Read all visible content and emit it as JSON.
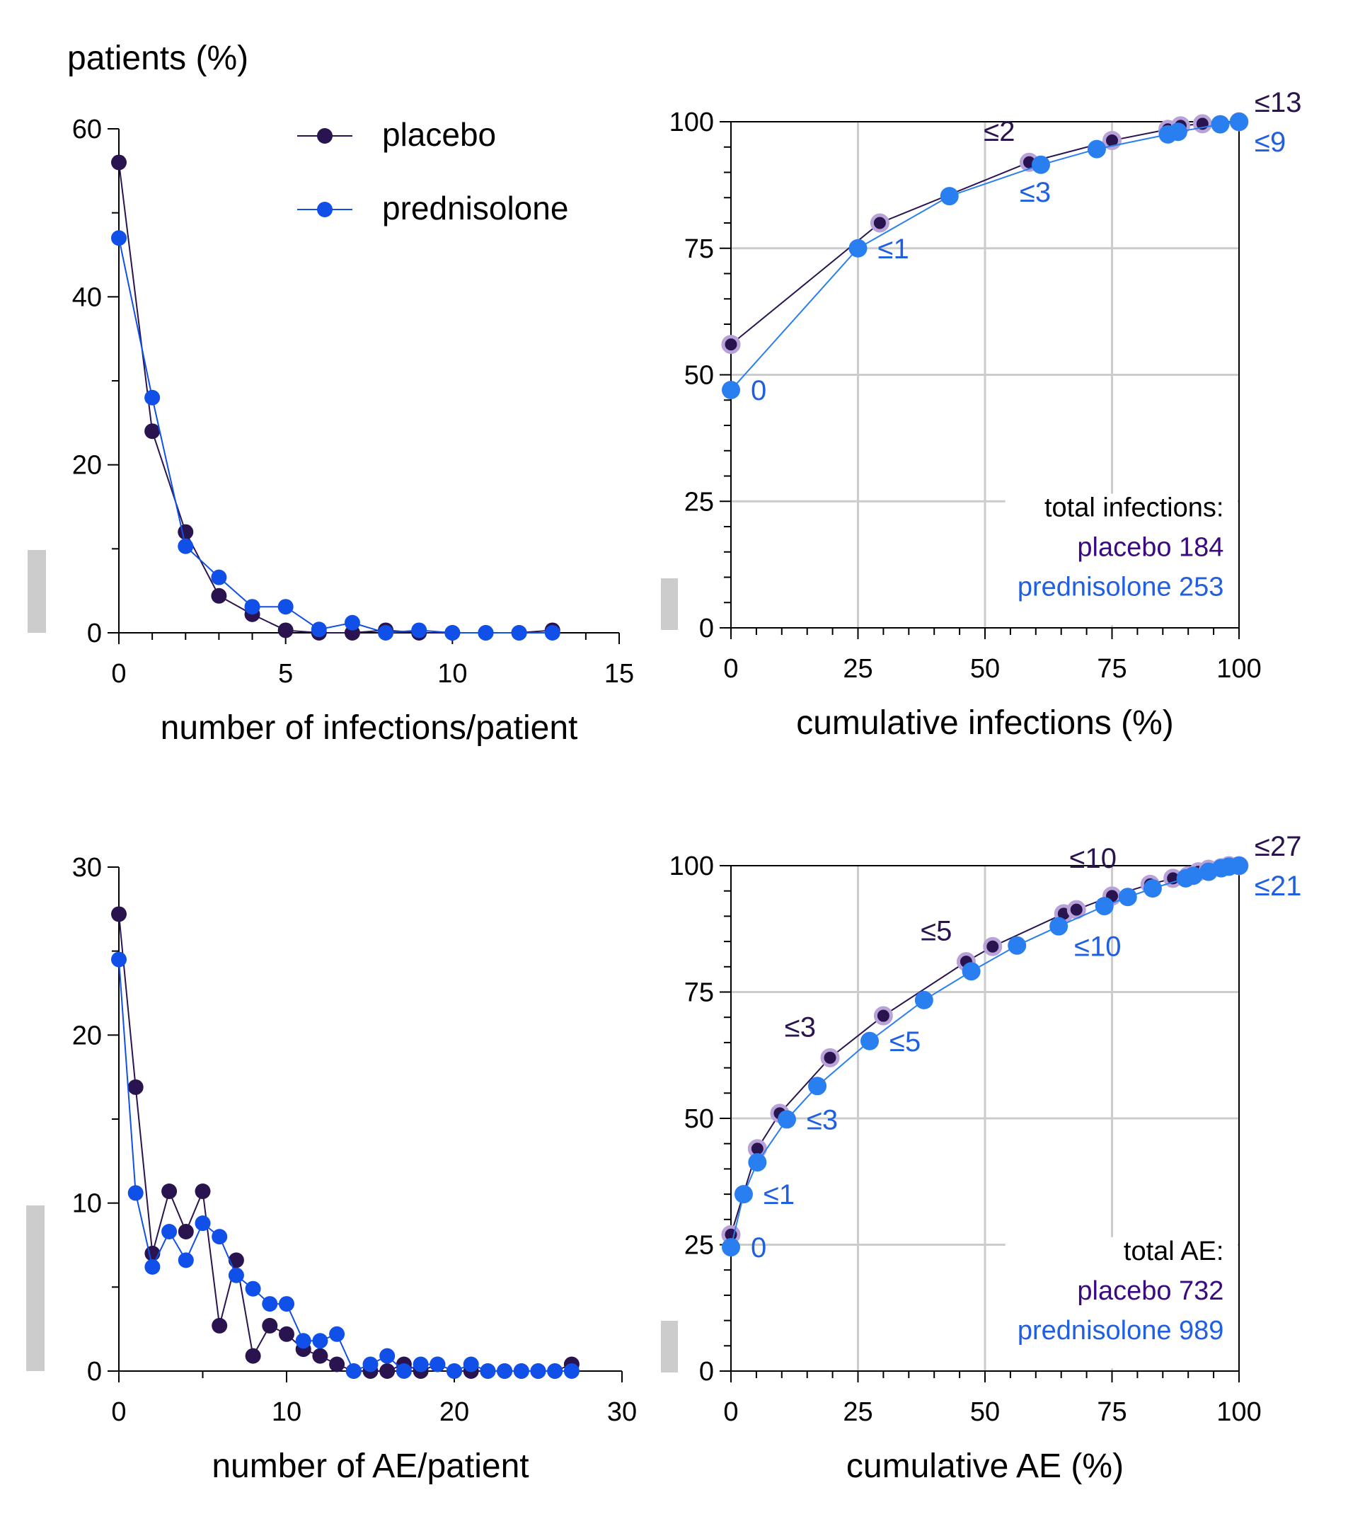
{
  "colors": {
    "placebo": "#2a1450",
    "placebo_halo": "#b8a2d8",
    "placebo_text": "#3a0a80",
    "prednisolone": "#1050e8",
    "prednisolone_cum": "#2a7ff0",
    "prednisolone_text": "#2060e0",
    "grid": "#cccccc",
    "side_bar": "#cccccc"
  },
  "legend": {
    "items": [
      {
        "name": "placebo",
        "color_key": "placebo"
      },
      {
        "name": "prednisolone",
        "color_key": "prednisolone"
      }
    ]
  },
  "chart_data": [
    {
      "id": "infections-distribution",
      "type": "line",
      "ylabel": "patients (%)",
      "xlabel": "number of infections/patient",
      "xlim": [
        0,
        15
      ],
      "ylim": [
        0,
        60
      ],
      "xticks": [
        0,
        5,
        10,
        15
      ],
      "yticks": [
        0,
        20,
        40,
        60
      ],
      "grid": false,
      "legend_placement": "top-right",
      "series": [
        {
          "name": "placebo",
          "x": [
            0,
            1,
            2,
            3,
            4,
            5,
            6,
            7,
            8,
            9,
            10,
            11,
            12,
            13
          ],
          "y": [
            56,
            24,
            12,
            4.4,
            2.2,
            0.3,
            0,
            0,
            0.3,
            0,
            0,
            0,
            0,
            0.3
          ]
        },
        {
          "name": "prednisolone",
          "x": [
            0,
            1,
            2,
            3,
            4,
            5,
            6,
            7,
            8,
            9,
            10,
            11,
            12,
            13
          ],
          "y": [
            47,
            28,
            10.3,
            6.6,
            3.1,
            3.1,
            0.4,
            1.2,
            0,
            0.3,
            0,
            0,
            0,
            0
          ]
        }
      ]
    },
    {
      "id": "infections-cumulative",
      "type": "line",
      "xlabel": "cumulative infections (%)",
      "xlim": [
        0,
        100
      ],
      "ylim": [
        0,
        100
      ],
      "xticks": [
        0,
        25,
        50,
        75,
        100
      ],
      "yticks": [
        0,
        25,
        50,
        75,
        100
      ],
      "grid": true,
      "totals": {
        "title": "total infections:",
        "placebo": "placebo 184",
        "prednisolone": "prednisolone 253"
      },
      "series": [
        {
          "name": "placebo",
          "x": [
            0,
            29.3,
            58.7,
            75,
            86,
            88.5,
            92.8,
            100
          ],
          "y": [
            56,
            80,
            92,
            96.3,
            98.5,
            99.2,
            99.6,
            100
          ]
        },
        {
          "name": "prednisolone",
          "x": [
            0,
            25,
            43,
            61,
            72,
            86,
            88,
            96.3,
            100
          ],
          "y": [
            47,
            75,
            85.3,
            91.5,
            94.6,
            97.5,
            98,
            99.5,
            100
          ]
        }
      ],
      "annotations": [
        {
          "series": "placebo",
          "text": "≤2",
          "x": 58.7,
          "y": 92,
          "pos": "left-above"
        },
        {
          "series": "placebo",
          "text": "≤13",
          "x": 100,
          "y": 100,
          "pos": "right-above"
        },
        {
          "series": "prednisolone",
          "text": "0",
          "x": 0,
          "y": 47,
          "pos": "right"
        },
        {
          "series": "prednisolone",
          "text": "≤1",
          "x": 25,
          "y": 75,
          "pos": "right"
        },
        {
          "series": "prednisolone",
          "text": "≤3",
          "x": 61,
          "y": 91.5,
          "pos": "below"
        },
        {
          "series": "prednisolone",
          "text": "≤9",
          "x": 100,
          "y": 100,
          "pos": "right-below"
        }
      ]
    },
    {
      "id": "ae-distribution",
      "type": "line",
      "xlabel": "number of AE/patient",
      "xlim": [
        0,
        30
      ],
      "ylim": [
        0,
        30
      ],
      "xticks": [
        0,
        10,
        20,
        30
      ],
      "yticks": [
        0,
        10,
        20,
        30
      ],
      "grid": false,
      "series": [
        {
          "name": "placebo",
          "x": [
            0,
            1,
            2,
            3,
            4,
            5,
            6,
            7,
            8,
            9,
            10,
            11,
            12,
            13,
            14,
            15,
            16,
            17,
            18,
            19,
            20,
            21,
            22,
            23,
            24,
            25,
            26,
            27
          ],
          "y": [
            27.2,
            16.9,
            7.0,
            10.7,
            8.3,
            10.7,
            2.7,
            6.6,
            0.9,
            2.7,
            2.2,
            1.3,
            0.9,
            0.4,
            0,
            0,
            0,
            0.4,
            0,
            0.4,
            0,
            0,
            0,
            0,
            0,
            0,
            0,
            0.4
          ]
        },
        {
          "name": "prednisolone",
          "x": [
            0,
            1,
            2,
            3,
            4,
            5,
            6,
            7,
            8,
            9,
            10,
            11,
            12,
            13,
            14,
            15,
            16,
            17,
            18,
            19,
            20,
            21,
            22,
            23,
            24,
            25,
            26,
            27
          ],
          "y": [
            24.5,
            10.6,
            6.2,
            8.3,
            6.6,
            8.8,
            8.0,
            5.7,
            4.9,
            4.0,
            4.0,
            1.8,
            1.8,
            2.2,
            0,
            0.4,
            0.9,
            0,
            0.4,
            0.4,
            0,
            0.4,
            0,
            0,
            0,
            0,
            0,
            0
          ]
        }
      ]
    },
    {
      "id": "ae-cumulative",
      "type": "line",
      "xlabel": "cumulative AE (%)",
      "xlim": [
        0,
        100
      ],
      "ylim": [
        0,
        100
      ],
      "xticks": [
        0,
        25,
        50,
        75,
        100
      ],
      "yticks": [
        0,
        25,
        50,
        75,
        100
      ],
      "grid": true,
      "totals": {
        "title": "total AE:",
        "placebo": "placebo 732",
        "prednisolone": "prednisolone 989"
      },
      "series": [
        {
          "name": "placebo",
          "x": [
            0,
            5.2,
            9.6,
            19.5,
            30,
            46.3,
            51.5,
            65.5,
            68,
            75,
            82.5,
            87,
            90,
            92,
            94,
            96.5,
            98,
            100
          ],
          "y": [
            27,
            44,
            51,
            62,
            70.3,
            81,
            84,
            90.5,
            91.3,
            94,
            96.3,
            97.5,
            98,
            98.8,
            99.3,
            99.6,
            100,
            100
          ]
        },
        {
          "name": "prednisolone",
          "x": [
            0,
            2.5,
            5.2,
            11,
            17,
            27.3,
            38,
            47.3,
            56.3,
            64.5,
            73.5,
            78.1,
            83,
            89.5,
            91,
            94,
            96.5,
            98,
            100
          ],
          "y": [
            24.5,
            35,
            41.3,
            49.8,
            56.4,
            65.3,
            73.4,
            79.1,
            84.2,
            88,
            92,
            93.8,
            95.5,
            97.5,
            98,
            98.8,
            99.5,
            99.8,
            100
          ]
        }
      ],
      "annotations": [
        {
          "series": "placebo",
          "text": "≤3",
          "x": 19.5,
          "y": 62,
          "pos": "left-above"
        },
        {
          "series": "placebo",
          "text": "≤5",
          "x": 46.3,
          "y": 81,
          "pos": "left-above"
        },
        {
          "series": "placebo",
          "text": "≤10",
          "x": 75,
          "y": 94,
          "pos": "above"
        },
        {
          "series": "placebo",
          "text": "≤27",
          "x": 100,
          "y": 100,
          "pos": "right-above"
        },
        {
          "series": "prednisolone",
          "text": "0",
          "x": 0,
          "y": 24.5,
          "pos": "right"
        },
        {
          "series": "prednisolone",
          "text": "≤1",
          "x": 2.5,
          "y": 35,
          "pos": "right"
        },
        {
          "series": "prednisolone",
          "text": "≤3",
          "x": 11,
          "y": 49.8,
          "pos": "right"
        },
        {
          "series": "prednisolone",
          "text": "≤5",
          "x": 27.3,
          "y": 65.3,
          "pos": "right"
        },
        {
          "series": "prednisolone",
          "text": "≤10",
          "x": 64.5,
          "y": 88,
          "pos": "right-below"
        },
        {
          "series": "prednisolone",
          "text": "≤21",
          "x": 100,
          "y": 100,
          "pos": "right-below"
        }
      ]
    }
  ]
}
